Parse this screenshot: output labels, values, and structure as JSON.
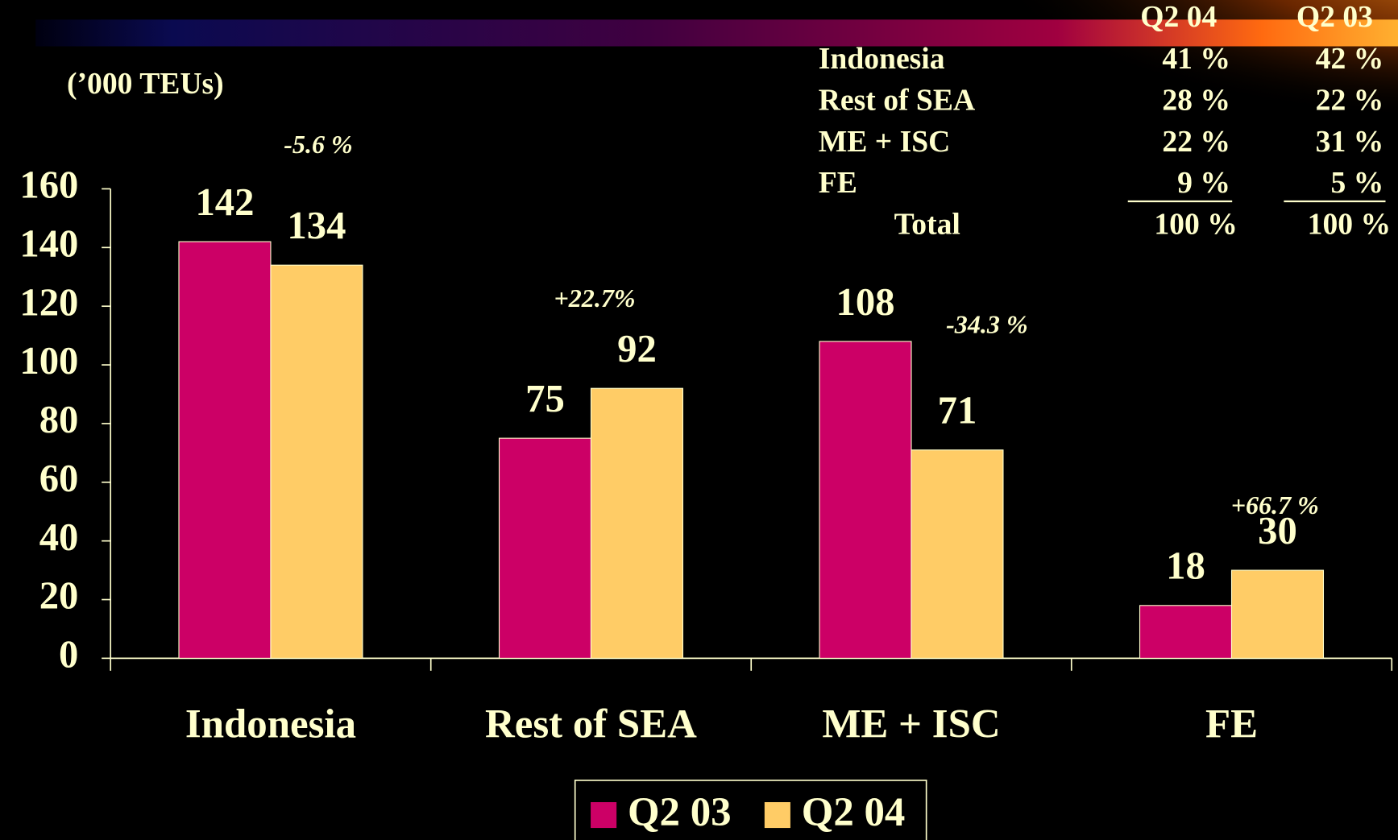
{
  "chart_data": {
    "type": "bar",
    "unit_label": "(’000 TEUs)",
    "categories": [
      "Indonesia",
      "Rest of SEA",
      "ME + ISC",
      "FE"
    ],
    "series": [
      {
        "name": "Q2 03",
        "color": "#CC0066",
        "values": [
          142,
          75,
          108,
          18
        ]
      },
      {
        "name": "Q2 04",
        "color": "#FFCC66",
        "values": [
          134,
          92,
          71,
          30
        ]
      }
    ],
    "annotations": [
      "-5.6 %",
      "+22.7%",
      "-34.3 %",
      "+66.7 %"
    ],
    "ylim": [
      0,
      160
    ],
    "yticks": [
      0,
      20,
      40,
      60,
      80,
      100,
      120,
      140,
      160
    ],
    "grid": false,
    "legend": "bottom"
  },
  "table": {
    "columns": [
      "Q2 04",
      "Q2 03"
    ],
    "rows": [
      [
        "Indonesia",
        "41 %",
        "42 %"
      ],
      [
        "Rest of SEA",
        "28 %",
        "22 %"
      ],
      [
        "ME + ISC",
        "22 %",
        "31 %"
      ],
      [
        "FE",
        "9 %",
        "5 %"
      ]
    ],
    "total": [
      "Total",
      "100 %",
      "100 %"
    ]
  }
}
